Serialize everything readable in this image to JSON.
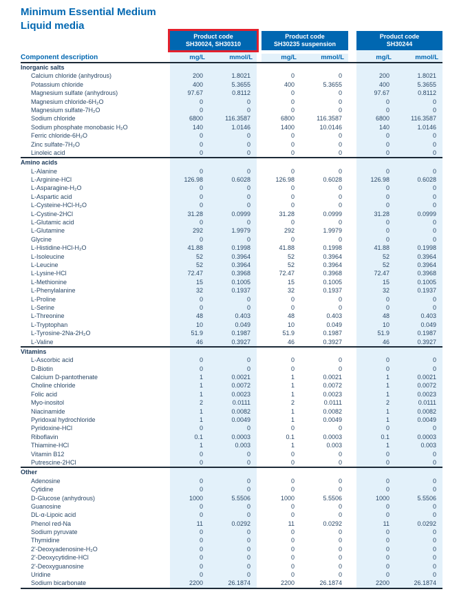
{
  "page": {
    "title_line1": "Minimum Essential Medium",
    "title_line2": "Liquid media"
  },
  "colors": {
    "brand_blue": "#0067b1",
    "highlight_red": "#e4202c",
    "column_shade": "#e3f1fa",
    "text_navy": "#2a4766",
    "rule_dark": "#1b2936"
  },
  "table": {
    "label_header": "Component description",
    "unit_headers": [
      "mg/L",
      "mmol/L"
    ],
    "product_groups": [
      {
        "line1": "Product code",
        "line2": "SH30024, SH30310",
        "highlighted": true,
        "shaded": true
      },
      {
        "line1": "Product code",
        "line2": "SH30235 suspension",
        "highlighted": false,
        "shaded": false
      },
      {
        "line1": "Product code",
        "line2": "SH30244",
        "highlighted": false,
        "shaded": true
      }
    ],
    "sections": [
      {
        "name": "Inorganic salts",
        "rows": [
          {
            "component": "Calcium chloride (anhydrous)",
            "values": [
              "200",
              "1.8021",
              "0",
              "0",
              "200",
              "1.8021"
            ]
          },
          {
            "component": "Potassium chloride",
            "values": [
              "400",
              "5.3655",
              "400",
              "5.3655",
              "400",
              "5.3655"
            ]
          },
          {
            "component": "Magnesium sulfate (anhydrous)",
            "values": [
              "97.67",
              "0.8112",
              "0",
              "0",
              "97.67",
              "0.8112"
            ]
          },
          {
            "component": "Magnesium chloride-6H₂O",
            "values": [
              "0",
              "0",
              "0",
              "0",
              "0",
              "0"
            ]
          },
          {
            "component": "Magnesium sulfate-7H₂O",
            "values": [
              "0",
              "0",
              "0",
              "0",
              "0",
              "0"
            ]
          },
          {
            "component": "Sodium chloride",
            "values": [
              "6800",
              "116.3587",
              "6800",
              "116.3587",
              "6800",
              "116.3587"
            ]
          },
          {
            "component": "Sodium phosphate monobasic H₂O",
            "values": [
              "140",
              "1.0146",
              "1400",
              "10.0146",
              "140",
              "1.0146"
            ]
          },
          {
            "component": "Ferric chloride-6H₂O",
            "values": [
              "0",
              "0",
              "0",
              "0",
              "0",
              "0"
            ]
          },
          {
            "component": "Zinc sulfate-7H₂O",
            "values": [
              "0",
              "0",
              "0",
              "0",
              "0",
              "0"
            ]
          },
          {
            "component": "Linoleic acid",
            "values": [
              "0",
              "0",
              "0",
              "0",
              "0",
              "0"
            ]
          }
        ]
      },
      {
        "name": "Amino acids",
        "rows": [
          {
            "component": "L-Alanine",
            "values": [
              "0",
              "0",
              "0",
              "0",
              "0",
              "0"
            ]
          },
          {
            "component": "L-Arginine-HCl",
            "values": [
              "126.98",
              "0.6028",
              "126.98",
              "0.6028",
              "126.98",
              "0.6028"
            ]
          },
          {
            "component": "L-Asparagine-H₂O",
            "values": [
              "0",
              "0",
              "0",
              "0",
              "0",
              "0"
            ]
          },
          {
            "component": "L-Aspartic acid",
            "values": [
              "0",
              "0",
              "0",
              "0",
              "0",
              "0"
            ]
          },
          {
            "component": "L-Cysteine-HCl-H₂O",
            "values": [
              "0",
              "0",
              "0",
              "0",
              "0",
              "0"
            ]
          },
          {
            "component": "L-Cystine-2HCl",
            "values": [
              "31.28",
              "0.0999",
              "31.28",
              "0.0999",
              "31.28",
              "0.0999"
            ]
          },
          {
            "component": "L-Glutamic acid",
            "values": [
              "0",
              "0",
              "0",
              "0",
              "0",
              "0"
            ]
          },
          {
            "component": "L-Glutamine",
            "values": [
              "292",
              "1.9979",
              "292",
              "1.9979",
              "0",
              "0"
            ]
          },
          {
            "component": "Glycine",
            "values": [
              "0",
              "0",
              "0",
              "0",
              "0",
              "0"
            ]
          },
          {
            "component": "L-Histidine-HCl-H₂O",
            "values": [
              "41.88",
              "0.1998",
              "41.88",
              "0.1998",
              "41.88",
              "0.1998"
            ]
          },
          {
            "component": "L-Isoleucine",
            "values": [
              "52",
              "0.3964",
              "52",
              "0.3964",
              "52",
              "0.3964"
            ]
          },
          {
            "component": "L-Leucine",
            "values": [
              "52",
              "0.3964",
              "52",
              "0.3964",
              "52",
              "0.3964"
            ]
          },
          {
            "component": "L-Lysine-HCl",
            "values": [
              "72.47",
              "0.3968",
              "72.47",
              "0.3968",
              "72.47",
              "0.3968"
            ]
          },
          {
            "component": "L-Methionine",
            "values": [
              "15",
              "0.1005",
              "15",
              "0.1005",
              "15",
              "0.1005"
            ]
          },
          {
            "component": "L-Phenylalanine",
            "values": [
              "32",
              "0.1937",
              "32",
              "0.1937",
              "32",
              "0.1937"
            ]
          },
          {
            "component": "L-Proline",
            "values": [
              "0",
              "0",
              "0",
              "0",
              "0",
              "0"
            ]
          },
          {
            "component": "L-Serine",
            "values": [
              "0",
              "0",
              "0",
              "0",
              "0",
              "0"
            ]
          },
          {
            "component": "L-Threonine",
            "values": [
              "48",
              "0.403",
              "48",
              "0.403",
              "48",
              "0.403"
            ]
          },
          {
            "component": "L-Tryptophan",
            "values": [
              "10",
              "0.049",
              "10",
              "0.049",
              "10",
              "0.049"
            ]
          },
          {
            "component": "L-Tyrosine-2Na-2H₂O",
            "values": [
              "51.9",
              "0.1987",
              "51.9",
              "0.1987",
              "51.9",
              "0.1987"
            ]
          },
          {
            "component": "L-Valine",
            "values": [
              "46",
              "0.3927",
              "46",
              "0.3927",
              "46",
              "0.3927"
            ]
          }
        ]
      },
      {
        "name": "Vitamins",
        "rows": [
          {
            "component": "L-Ascorbic acid",
            "values": [
              "0",
              "0",
              "0",
              "0",
              "0",
              "0"
            ]
          },
          {
            "component": "D-Biotin",
            "values": [
              "0",
              "0",
              "0",
              "0",
              "0",
              "0"
            ]
          },
          {
            "component": "Calcium D-pantothenate",
            "values": [
              "1",
              "0.0021",
              "1",
              "0.0021",
              "1",
              "0.0021"
            ]
          },
          {
            "component": "Choline chloride",
            "values": [
              "1",
              "0.0072",
              "1",
              "0.0072",
              "1",
              "0.0072"
            ]
          },
          {
            "component": "Folic acid",
            "values": [
              "1",
              "0.0023",
              "1",
              "0.0023",
              "1",
              "0.0023"
            ]
          },
          {
            "component": "Myo-inositol",
            "values": [
              "2",
              "0.0111",
              "2",
              "0.0111",
              "2",
              "0.0111"
            ]
          },
          {
            "component": "Niacinamide",
            "values": [
              "1",
              "0.0082",
              "1",
              "0.0082",
              "1",
              "0.0082"
            ]
          },
          {
            "component": "Pyridoxal hydrochloride",
            "values": [
              "1",
              "0.0049",
              "1",
              "0.0049",
              "1",
              "0.0049"
            ]
          },
          {
            "component": "Pyridoxine-HCl",
            "values": [
              "0",
              "0",
              "0",
              "0",
              "0",
              "0"
            ]
          },
          {
            "component": "Riboflavin",
            "values": [
              "0.1",
              "0.0003",
              "0.1",
              "0.0003",
              "0.1",
              "0.0003"
            ]
          },
          {
            "component": "Thiamine-HCl",
            "values": [
              "1",
              "0.003",
              "1",
              "0.003",
              "1",
              "0.003"
            ]
          },
          {
            "component": "Vitamin B12",
            "values": [
              "0",
              "0",
              "0",
              "0",
              "0",
              "0"
            ]
          },
          {
            "component": "Putrescine-2HCl",
            "values": [
              "0",
              "0",
              "0",
              "0",
              "0",
              "0"
            ]
          }
        ]
      },
      {
        "name": "Other",
        "rows": [
          {
            "component": "Adenosine",
            "values": [
              "0",
              "0",
              "0",
              "0",
              "0",
              "0"
            ]
          },
          {
            "component": "Cytidine",
            "values": [
              "0",
              "0",
              "0",
              "0",
              "0",
              "0"
            ]
          },
          {
            "component": "D-Glucose (anhydrous)",
            "values": [
              "1000",
              "5.5506",
              "1000",
              "5.5506",
              "1000",
              "5.5506"
            ]
          },
          {
            "component": "Guanosine",
            "values": [
              "0",
              "0",
              "0",
              "0",
              "0",
              "0"
            ]
          },
          {
            "component": "DL-α-Lipoic acid",
            "values": [
              "0",
              "0",
              "0",
              "0",
              "0",
              "0"
            ]
          },
          {
            "component": "Phenol red-Na",
            "values": [
              "11",
              "0.0292",
              "11",
              "0.0292",
              "11",
              "0.0292"
            ]
          },
          {
            "component": "Sodium pyruvate",
            "values": [
              "0",
              "0",
              "0",
              "0",
              "0",
              "0"
            ]
          },
          {
            "component": "Thymidine",
            "values": [
              "0",
              "0",
              "0",
              "0",
              "0",
              "0"
            ]
          },
          {
            "component": "2'-Deoxyadenosine-H₂O",
            "values": [
              "0",
              "0",
              "0",
              "0",
              "0",
              "0"
            ]
          },
          {
            "component": "2'-Deoxycytidine-HCl",
            "values": [
              "0",
              "0",
              "0",
              "0",
              "0",
              "0"
            ]
          },
          {
            "component": "2'-Deoxyguanosine",
            "values": [
              "0",
              "0",
              "0",
              "0",
              "0",
              "0"
            ]
          },
          {
            "component": "Uridine",
            "values": [
              "0",
              "0",
              "0",
              "0",
              "0",
              "0"
            ]
          },
          {
            "component": "Sodium bicarbonate",
            "values": [
              "2200",
              "26.1874",
              "2200",
              "26.1874",
              "2200",
              "26.1874"
            ]
          }
        ]
      }
    ]
  }
}
